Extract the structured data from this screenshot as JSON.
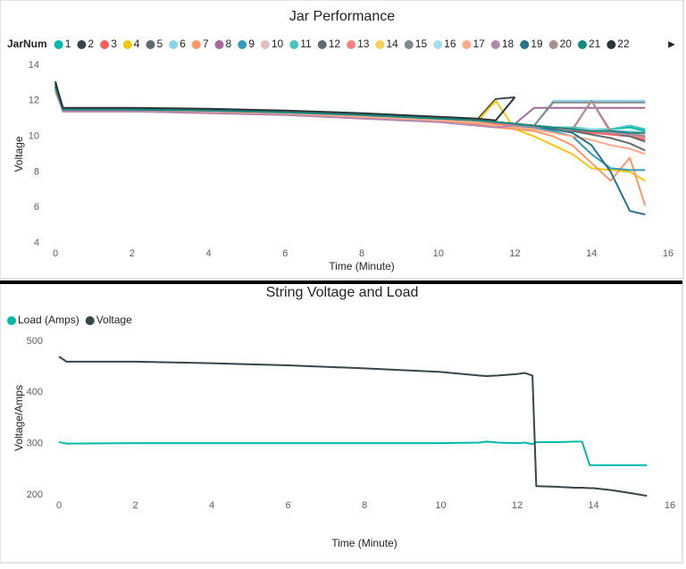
{
  "chart_data": [
    {
      "type": "line",
      "title": "Jar Performance",
      "legend_title": "JarNum",
      "x_label": "Time (Minute)",
      "y_label": "Voltage",
      "xlim": [
        0,
        16
      ],
      "xticks": [
        0,
        2,
        4,
        6,
        8,
        10,
        12,
        14,
        16
      ],
      "ylim": [
        4,
        14
      ],
      "yticks": [
        4,
        6,
        8,
        10,
        12,
        14
      ],
      "grid": false,
      "legend": "top",
      "x": [
        0,
        0.2,
        2,
        4,
        6,
        8,
        10,
        11,
        11.5,
        12,
        12.5,
        13,
        13.5,
        14,
        14.5,
        15,
        15.4
      ],
      "series": [
        {
          "name": "1",
          "color": "#01B8AA",
          "values": [
            12.9,
            11.5,
            11.5,
            11.45,
            11.35,
            11.2,
            11.0,
            10.9,
            10.8,
            10.7,
            10.6,
            10.5,
            10.4,
            10.3,
            10.4,
            10.5,
            10.3
          ]
        },
        {
          "name": "2",
          "color": "#374649",
          "values": [
            13.1,
            11.5,
            11.55,
            11.5,
            11.4,
            11.25,
            11.05,
            10.9,
            12.1,
            12.2,
            null,
            null,
            null,
            null,
            null,
            null,
            null
          ]
        },
        {
          "name": "3",
          "color": "#FD625E",
          "values": [
            12.6,
            11.4,
            11.4,
            11.35,
            11.25,
            11.1,
            10.9,
            10.8,
            10.7,
            10.6,
            10.5,
            10.4,
            10.3,
            10.2,
            10.1,
            10.0,
            9.8
          ]
        },
        {
          "name": "4",
          "color": "#F2C80F",
          "values": [
            12.5,
            11.5,
            11.5,
            11.4,
            11.3,
            11.15,
            10.9,
            10.8,
            12.0,
            10.4,
            10.0,
            9.5,
            9.0,
            8.2,
            8.1,
            8.0,
            7.5
          ]
        },
        {
          "name": "5",
          "color": "#5F6B6D",
          "values": [
            12.8,
            11.5,
            11.5,
            11.45,
            11.35,
            11.2,
            11.0,
            10.9,
            10.8,
            10.7,
            10.6,
            10.5,
            10.3,
            10.1,
            9.9,
            9.6,
            9.2
          ]
        },
        {
          "name": "6",
          "color": "#8AD4EB",
          "values": [
            12.7,
            11.5,
            11.5,
            11.45,
            11.35,
            11.2,
            11.0,
            10.9,
            10.8,
            10.7,
            10.6,
            12.0,
            12.0,
            12.0,
            12.0,
            12.0,
            12.0
          ]
        },
        {
          "name": "7",
          "color": "#FE9666",
          "values": [
            12.6,
            11.4,
            11.4,
            11.35,
            11.25,
            11.1,
            10.9,
            10.7,
            10.5,
            10.4,
            10.3,
            10.0,
            9.5,
            8.5,
            7.5,
            8.8,
            6.1
          ]
        },
        {
          "name": "8",
          "color": "#A66999",
          "values": [
            12.7,
            11.5,
            11.5,
            11.45,
            11.35,
            11.2,
            11.0,
            10.9,
            10.8,
            10.7,
            11.6,
            11.6,
            11.6,
            11.6,
            11.6,
            11.6,
            11.6
          ]
        },
        {
          "name": "9",
          "color": "#3599B8",
          "values": [
            12.8,
            11.5,
            11.5,
            11.45,
            11.35,
            11.2,
            11.0,
            10.9,
            10.8,
            10.6,
            10.5,
            10.3,
            10.0,
            9.0,
            8.2,
            8.1,
            8.1
          ]
        },
        {
          "name": "10",
          "color": "#DFBFBF",
          "values": [
            12.7,
            11.5,
            11.5,
            11.45,
            11.35,
            11.2,
            11.0,
            10.9,
            10.8,
            10.7,
            10.6,
            10.5,
            10.5,
            10.4,
            10.3,
            10.2,
            10.1
          ]
        },
        {
          "name": "11",
          "color": "#4AC5BB",
          "values": [
            12.7,
            11.5,
            11.5,
            11.45,
            11.35,
            11.2,
            11.0,
            10.9,
            10.8,
            10.7,
            10.6,
            10.5,
            10.5,
            10.4,
            10.4,
            10.6,
            10.4
          ]
        },
        {
          "name": "12",
          "color": "#5F6B6D",
          "values": [
            12.8,
            11.5,
            11.5,
            11.45,
            11.35,
            11.2,
            11.0,
            10.9,
            10.8,
            10.7,
            10.6,
            10.5,
            10.4,
            10.3,
            10.2,
            10.0,
            9.7
          ]
        },
        {
          "name": "13",
          "color": "#FB8281",
          "values": [
            12.6,
            11.4,
            11.45,
            11.4,
            11.3,
            11.15,
            10.95,
            10.85,
            10.75,
            10.65,
            10.55,
            10.45,
            10.35,
            12.0,
            10.2,
            10.1,
            9.9
          ]
        },
        {
          "name": "14",
          "color": "#F4D25A",
          "values": [
            12.6,
            11.5,
            11.5,
            11.45,
            11.35,
            11.2,
            11.0,
            10.9,
            10.8,
            10.7,
            10.6,
            10.5,
            10.4,
            10.3,
            10.2,
            10.1,
            10.0
          ]
        },
        {
          "name": "15",
          "color": "#7F898A",
          "values": [
            12.7,
            11.5,
            11.5,
            11.45,
            11.35,
            11.2,
            11.0,
            10.9,
            10.8,
            10.7,
            10.6,
            11.9,
            11.9,
            11.9,
            11.9,
            11.9,
            11.9
          ]
        },
        {
          "name": "16",
          "color": "#A4DDEE",
          "values": [
            12.7,
            11.5,
            11.5,
            11.45,
            11.35,
            11.2,
            11.0,
            10.9,
            10.8,
            10.7,
            10.6,
            10.5,
            10.4,
            10.4,
            10.3,
            10.3,
            10.2
          ]
        },
        {
          "name": "17",
          "color": "#FDAB89",
          "values": [
            12.6,
            11.4,
            11.4,
            11.35,
            11.25,
            11.1,
            10.9,
            10.8,
            10.6,
            10.5,
            10.4,
            10.2,
            10.0,
            9.8,
            9.5,
            9.3,
            9.0
          ]
        },
        {
          "name": "18",
          "color": "#B687AC",
          "values": [
            12.6,
            11.4,
            11.4,
            11.3,
            11.2,
            11.0,
            10.8,
            10.6,
            10.5,
            10.6,
            10.6,
            10.5,
            10.4,
            10.3,
            10.2,
            10.1,
            10.0
          ]
        },
        {
          "name": "19",
          "color": "#28738A",
          "values": [
            12.8,
            11.5,
            11.5,
            11.45,
            11.35,
            11.2,
            11.0,
            10.9,
            10.8,
            10.7,
            10.6,
            10.4,
            10.2,
            9.5,
            8.0,
            5.8,
            5.6
          ]
        },
        {
          "name": "20",
          "color": "#A78F8F",
          "values": [
            12.7,
            11.5,
            11.5,
            11.45,
            11.35,
            11.2,
            11.0,
            10.9,
            10.8,
            10.7,
            10.6,
            10.5,
            10.4,
            12.0,
            10.3,
            10.2,
            10.0
          ]
        },
        {
          "name": "21",
          "color": "#168980",
          "values": [
            12.8,
            11.5,
            11.5,
            11.45,
            11.35,
            11.2,
            11.0,
            10.9,
            10.8,
            10.7,
            10.6,
            10.5,
            10.4,
            10.3,
            10.3,
            10.2,
            10.2
          ]
        },
        {
          "name": "22",
          "color": "#293537",
          "values": [
            13.0,
            11.6,
            11.6,
            11.55,
            11.45,
            11.3,
            11.1,
            11.0,
            10.9,
            12.2,
            null,
            null,
            null,
            null,
            null,
            null,
            null
          ]
        }
      ]
    },
    {
      "type": "line",
      "title": "String Voltage and Load",
      "x_label": "Time (Minute)",
      "y_label": "Voltage/Amps",
      "xlim": [
        0,
        16
      ],
      "xticks": [
        0,
        2,
        4,
        6,
        8,
        10,
        12,
        14,
        16
      ],
      "ylim": [
        200,
        500
      ],
      "yticks": [
        200,
        300,
        400,
        500
      ],
      "grid": false,
      "legend": "top-left",
      "x": [
        0,
        0.2,
        2,
        4,
        6,
        8,
        10,
        11,
        11.2,
        11.5,
        12,
        12.2,
        12.4,
        12.5,
        13,
        13.5,
        13.7,
        13.9,
        14,
        14.5,
        15,
        15.4
      ],
      "series": [
        {
          "name": "Load (Amps)",
          "color": "#01B8AA",
          "values": [
            303,
            300,
            301,
            301,
            301,
            301,
            301,
            302,
            304,
            302,
            301,
            302,
            299,
            303,
            303,
            304,
            304,
            258,
            258,
            258,
            258,
            258
          ]
        },
        {
          "name": "Voltage",
          "color": "#374649",
          "values": [
            470,
            460,
            460,
            457,
            453,
            447,
            440,
            433,
            432,
            433,
            436,
            438,
            433,
            217,
            216,
            214,
            214,
            213,
            213,
            209,
            203,
            198
          ]
        }
      ]
    }
  ]
}
